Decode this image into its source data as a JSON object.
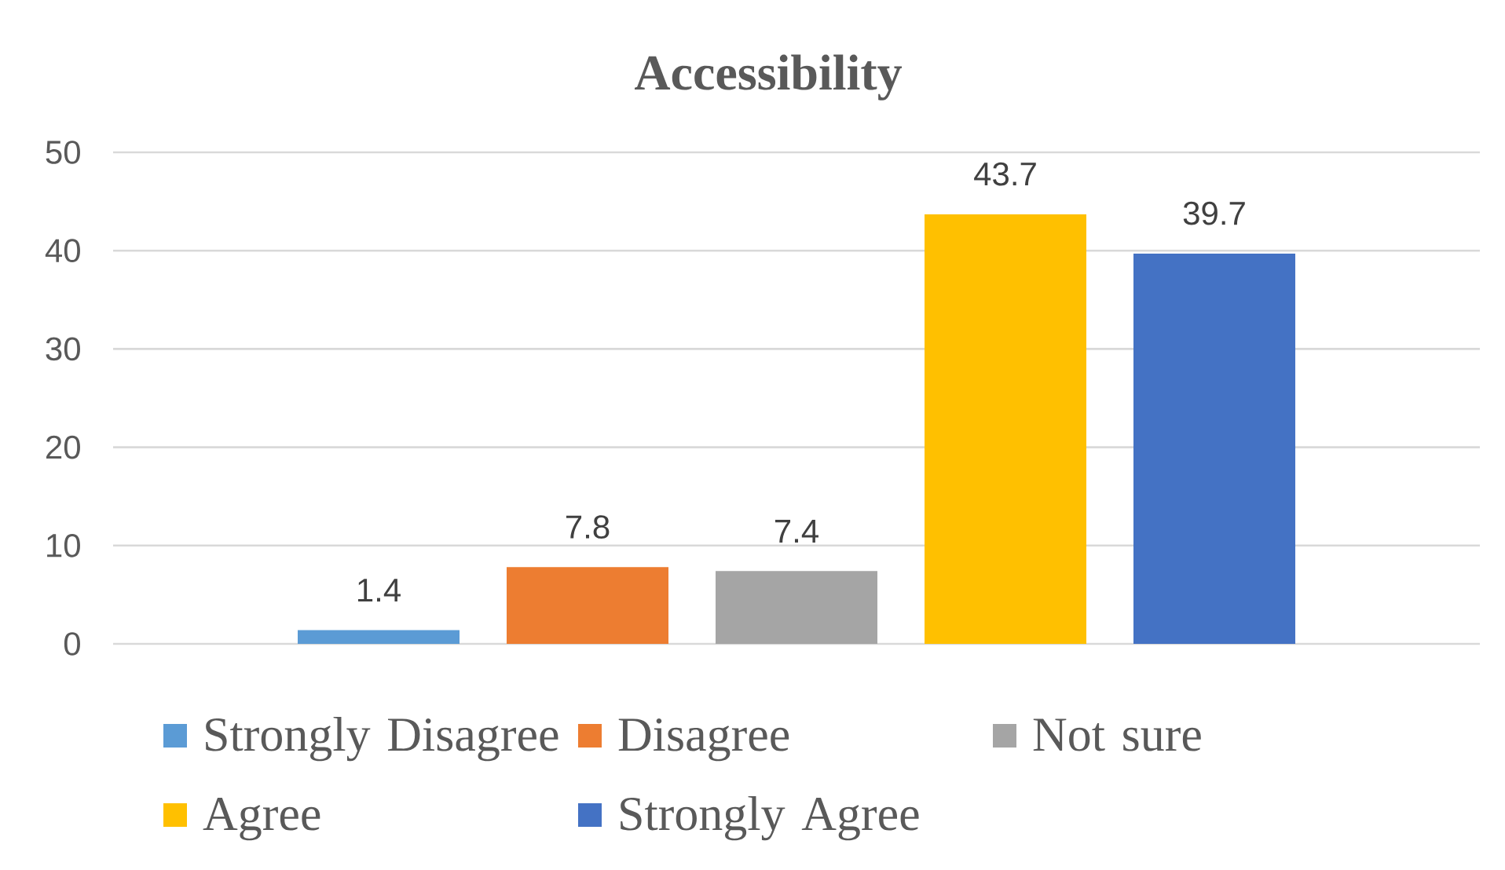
{
  "chart_data": {
    "type": "bar",
    "title": "Accessibility",
    "categories": [
      null
    ],
    "series": [
      {
        "name": "Strongly Disagree",
        "color": "#5b9bd5",
        "values": [
          1.4
        ]
      },
      {
        "name": "Disagree",
        "color": "#ed7d31",
        "values": [
          7.8
        ]
      },
      {
        "name": "Not sure",
        "color": "#a5a5a5",
        "values": [
          7.4
        ]
      },
      {
        "name": "Agree",
        "color": "#ffc000",
        "values": [
          43.7
        ]
      },
      {
        "name": "Strongly Agree",
        "color": "#4472c4",
        "values": [
          39.7
        ]
      }
    ],
    "ylim": [
      0,
      50
    ],
    "yticks": [
      0,
      10,
      20,
      30,
      40,
      50
    ],
    "grid": "y",
    "legend": "bottom",
    "data_labels": true
  }
}
